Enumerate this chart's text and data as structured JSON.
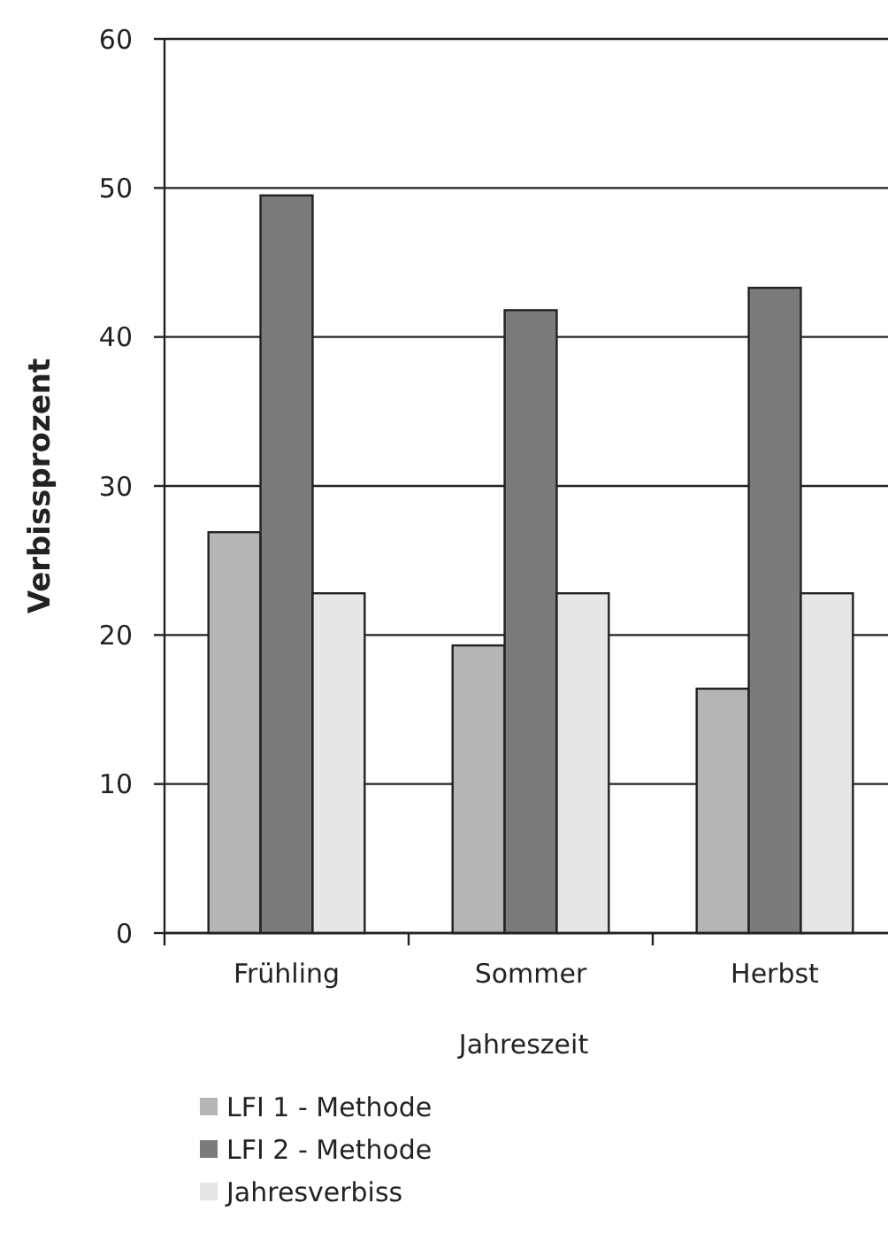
{
  "chart_data": {
    "type": "bar",
    "xlabel": "Jahreszeit",
    "ylabel": "Verbissprozent",
    "categories": [
      "Frühling",
      "Sommer",
      "Herbst"
    ],
    "series": [
      {
        "name": "LFI 1 - Methode",
        "color": "#b5b5b5",
        "values": [
          26.9,
          19.3,
          16.4
        ]
      },
      {
        "name": "LFI 2 - Methode",
        "color": "#7b7b7b",
        "values": [
          49.5,
          41.8,
          43.3
        ]
      },
      {
        "name": "Jahresverbiss",
        "color": "#e6e6e6",
        "values": [
          22.8,
          22.8,
          22.8
        ]
      }
    ],
    "ylim": [
      0,
      60
    ],
    "yticks": [
      0,
      10,
      20,
      30,
      40,
      50,
      60
    ],
    "grid": "y",
    "legend": "bottom left"
  }
}
